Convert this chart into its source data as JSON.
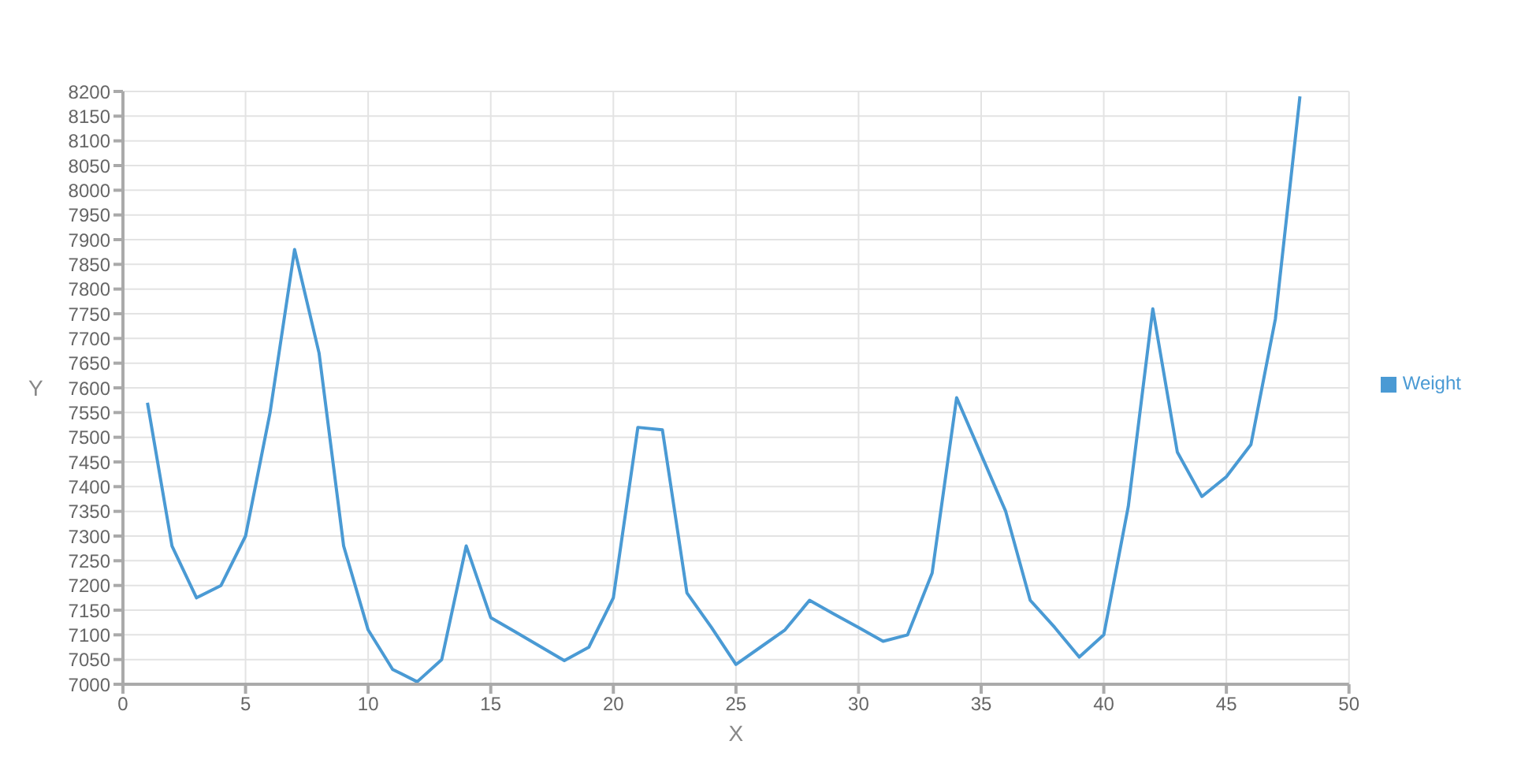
{
  "chart_data": {
    "type": "line",
    "xlabel": "X",
    "ylabel": "Y",
    "x": [
      1,
      2,
      3,
      4,
      5,
      6,
      7,
      8,
      9,
      10,
      11,
      12,
      13,
      14,
      15,
      16,
      17,
      18,
      19,
      20,
      21,
      22,
      23,
      24,
      25,
      26,
      27,
      28,
      29,
      30,
      31,
      32,
      33,
      34,
      35,
      36,
      37,
      38,
      39,
      40,
      41,
      42,
      43,
      44,
      45,
      46,
      47,
      48
    ],
    "series": [
      {
        "name": "Weight",
        "color": "#4a9ad4",
        "values": [
          7570,
          7280,
          7175,
          7200,
          7300,
          7550,
          7880,
          7670,
          7280,
          7110,
          7030,
          7005,
          7050,
          7280,
          7135,
          7106,
          7077,
          7048,
          7075,
          7175,
          7520,
          7515,
          7185,
          7115,
          7040,
          7075,
          7110,
          7170,
          7142,
          7115,
          7087,
          7100,
          7225,
          7580,
          7465,
          7350,
          7170,
          7115,
          7055,
          7100,
          7360,
          7760,
          7470,
          7380,
          7420,
          7485,
          7740,
          8190
        ]
      }
    ],
    "xlim": [
      0,
      50
    ],
    "xticks": [
      0,
      5,
      10,
      15,
      20,
      25,
      30,
      35,
      40,
      45,
      50
    ],
    "ylim": [
      7000,
      8200
    ],
    "yticks": [
      7000,
      7050,
      7100,
      7150,
      7200,
      7250,
      7300,
      7350,
      7400,
      7450,
      7500,
      7550,
      7600,
      7650,
      7700,
      7750,
      7800,
      7850,
      7900,
      7950,
      8000,
      8050,
      8100,
      8150,
      8200
    ],
    "grid": true,
    "legend": "right",
    "marker": "none",
    "line_style": "solid"
  }
}
